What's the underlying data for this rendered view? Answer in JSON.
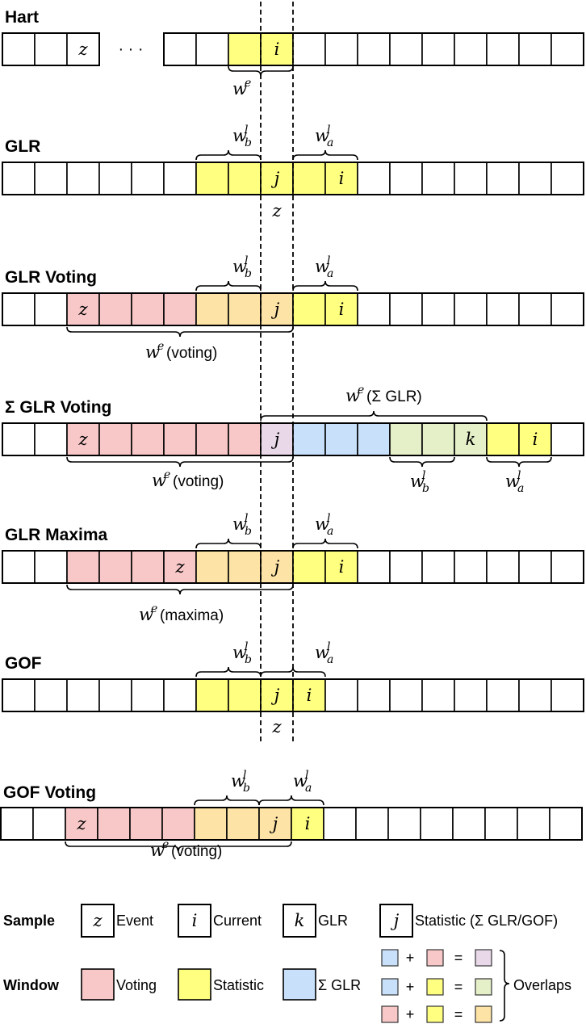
{
  "colors": {
    "voting": "#f8c8c8",
    "statistic": "#ffff80",
    "sum_glr": "#c8e0fa",
    "overlap_sum_voting": "#e8d8e8",
    "overlap_sum_statistic": "#e6f0c8",
    "overlap_voting_statistic": "#fde3a6",
    "white": "#ffffff"
  },
  "rows": [
    {
      "title": "Hart",
      "cells": [
        "w",
        "w",
        "w:z",
        "gap",
        "w",
        "w",
        "s",
        "s:i",
        "w",
        "w",
        "w",
        "w",
        "w",
        "w",
        "w",
        "w",
        "w"
      ],
      "ellipsis": "· · ·",
      "braces": [
        {
          "label_main": "w",
          "sup": "e",
          "sub": "",
          "suffix": ""
        }
      ],
      "below_text": ""
    },
    {
      "title": "GLR",
      "cells": [
        "w",
        "w",
        "w",
        "w",
        "w",
        "w",
        "s",
        "s",
        "s:j",
        "s",
        "s:i",
        "w",
        "w",
        "w",
        "w",
        "w",
        "w",
        "w"
      ],
      "braces": [
        {
          "label_main": "w",
          "sup": "l",
          "sub": "b",
          "suffix": ""
        },
        {
          "label_main": "w",
          "sup": "l",
          "sub": "a",
          "suffix": ""
        }
      ],
      "below_text": "z"
    },
    {
      "title": "GLR Voting",
      "cells": [
        "w",
        "w",
        "v:z",
        "v",
        "v",
        "v",
        "o",
        "o",
        "o:j",
        "s",
        "s:i",
        "w",
        "w",
        "w",
        "w",
        "w",
        "w",
        "w"
      ],
      "braces": [
        {
          "label_main": "w",
          "sup": "l",
          "sub": "b",
          "suffix": ""
        },
        {
          "label_main": "w",
          "sup": "l",
          "sub": "a",
          "suffix": ""
        },
        {
          "label_main": "w",
          "sup": "e",
          "sub": "",
          "suffix": "(voting)"
        }
      ],
      "below_text": ""
    },
    {
      "title": "Σ GLR Voting",
      "cells": [
        "w",
        "w",
        "v:z",
        "v",
        "v",
        "v",
        "v",
        "v",
        "p:j",
        "b",
        "b",
        "b",
        "g",
        "g",
        "g:k",
        "s",
        "s:i",
        "w"
      ],
      "braces": [
        {
          "label_main": "w",
          "sup": "e",
          "sub": "",
          "suffix": " (Σ GLR)"
        },
        {
          "label_main": "w",
          "sup": "e",
          "sub": "",
          "suffix": "(voting)"
        },
        {
          "label_main": "w",
          "sup": "l",
          "sub": "b",
          "suffix": ""
        },
        {
          "label_main": "w",
          "sup": "l",
          "sub": "a",
          "suffix": ""
        }
      ],
      "below_text": ""
    },
    {
      "title": "GLR Maxima",
      "cells": [
        "w",
        "w",
        "v",
        "v",
        "v",
        "v:z",
        "o",
        "o",
        "o:j",
        "s",
        "s:i",
        "w",
        "w",
        "w",
        "w",
        "w",
        "w",
        "w"
      ],
      "braces": [
        {
          "label_main": "w",
          "sup": "l",
          "sub": "b",
          "suffix": ""
        },
        {
          "label_main": "w",
          "sup": "l",
          "sub": "a",
          "suffix": ""
        },
        {
          "label_main": "w",
          "sup": "e",
          "sub": "",
          "suffix": " (maxima)"
        }
      ],
      "below_text": ""
    },
    {
      "title": "GOF",
      "cells": [
        "w",
        "w",
        "w",
        "w",
        "w",
        "w",
        "s",
        "s",
        "s:j",
        "s:i",
        "w",
        "w",
        "w",
        "w",
        "w",
        "w",
        "w",
        "w"
      ],
      "braces": [
        {
          "label_main": "w",
          "sup": "l",
          "sub": "b",
          "suffix": ""
        },
        {
          "label_main": "w",
          "sup": "l",
          "sub": "a",
          "suffix": ""
        }
      ],
      "below_text": "z"
    },
    {
      "title": "GOF Voting",
      "cells": [
        "w",
        "w",
        "v:z",
        "v",
        "v",
        "v",
        "o",
        "o",
        "o:j",
        "s:i",
        "w",
        "w",
        "w",
        "w",
        "w",
        "w",
        "w",
        "w"
      ],
      "braces": [
        {
          "label_main": "w",
          "sup": "l",
          "sub": "b",
          "suffix": ""
        },
        {
          "label_main": "w",
          "sup": "l",
          "sub": "a",
          "suffix": ""
        },
        {
          "label_main": "w",
          "sup": "e",
          "sub": "",
          "suffix": "(voting)"
        }
      ],
      "below_text": ""
    }
  ],
  "legend": {
    "sample_title": "Sample",
    "window_title": "Window",
    "samples": [
      {
        "symbol": "z",
        "label": "Event"
      },
      {
        "symbol": "i",
        "label": "Current"
      },
      {
        "symbol": "k",
        "label": "GLR"
      },
      {
        "symbol": "j",
        "label": "Statistic (Σ GLR/GOF)"
      }
    ],
    "windows": [
      {
        "color_key": "voting",
        "label": "Voting"
      },
      {
        "color_key": "statistic",
        "label": "Statistic"
      },
      {
        "color_key": "sum_glr",
        "label": "Σ GLR"
      }
    ],
    "overlaps_label": "Overlaps",
    "plus": "+",
    "equals": "=",
    "overlaps": [
      {
        "a": "sum_glr",
        "b": "voting",
        "result": "overlap_sum_voting"
      },
      {
        "a": "sum_glr",
        "b": "statistic",
        "result": "overlap_sum_statistic"
      },
      {
        "a": "voting",
        "b": "statistic",
        "result": "overlap_voting_statistic"
      }
    ]
  }
}
